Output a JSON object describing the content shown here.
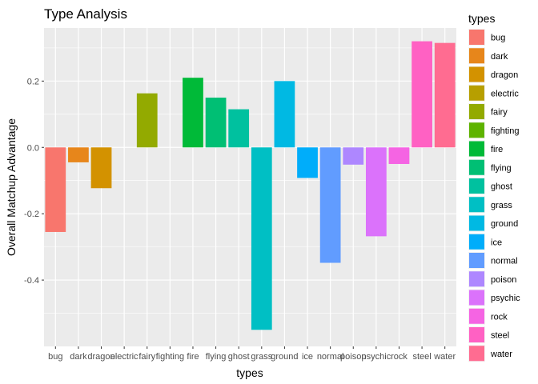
{
  "chart_data": {
    "type": "bar",
    "title": "Type Analysis",
    "xlabel": "types",
    "ylabel": "Overall Matchup Advantage",
    "categories": [
      "bug",
      "dark",
      "dragon",
      "electric",
      "fairy",
      "fighting",
      "fire",
      "flying",
      "ghost",
      "grass",
      "ground",
      "ice",
      "normal",
      "poison",
      "psychic",
      "rock",
      "steel",
      "water"
    ],
    "values": [
      -0.255,
      -0.045,
      -0.123,
      0,
      0.163,
      0,
      0.21,
      0.15,
      0.115,
      -0.55,
      0.2,
      -0.092,
      -0.348,
      -0.052,
      -0.268,
      -0.05,
      0.32,
      0.315
    ],
    "colors": [
      "#F8766D",
      "#E7861B",
      "#D39200",
      "#B79F00",
      "#93AA00",
      "#5EB300",
      "#00BA38",
      "#00BF74",
      "#00C19F",
      "#00BFC4",
      "#00B9E3",
      "#00ADFA",
      "#619CFF",
      "#AE87FF",
      "#DB72FB",
      "#F564E3",
      "#FF61C3",
      "#FF6C91"
    ],
    "ylim": [
      -0.6,
      0.36
    ],
    "yticks": [
      -0.4,
      -0.2,
      0.0,
      0.2
    ],
    "ytick_labels": [
      "-0.4",
      "-0.2",
      "0.0",
      "0.2"
    ],
    "grid": true,
    "panel_background": "#EBEBEB",
    "legend": {
      "title": "types",
      "placement": "right"
    }
  }
}
